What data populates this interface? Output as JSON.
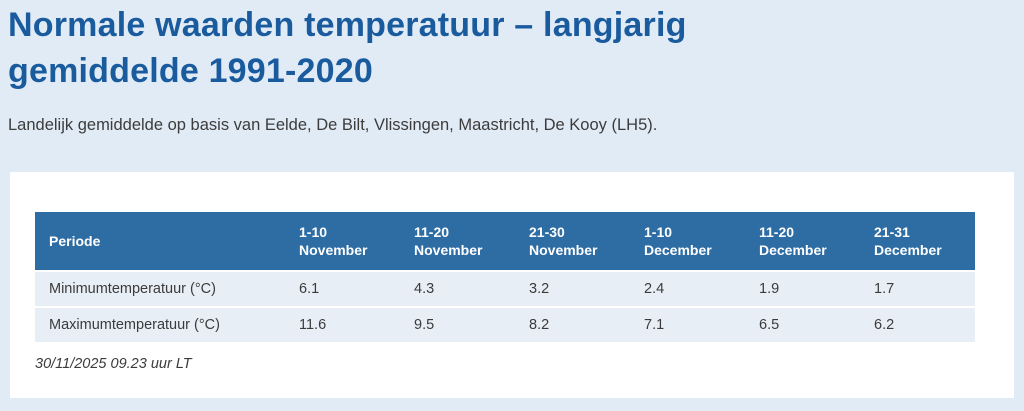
{
  "page": {
    "title_line1": "Normale waarden temperatuur – langjarig",
    "title_line2": "gemiddelde 1991-2020",
    "subtitle": "Landelijk gemiddelde op basis van Eelde, De Bilt, Vlissingen, Maastricht, De Kooy (LH5).",
    "timestamp": "30/11/2025 09.23 uur LT"
  },
  "colors": {
    "heading": "#1a5b9e",
    "page_background": "#e0ebf6",
    "card_background": "#ffffff",
    "table_header_bg": "#2e6da4",
    "table_row_bg": "#e8eef5"
  },
  "table": {
    "header": {
      "periode_label": "Periode",
      "columns": [
        {
          "line1": "1-10",
          "line2": "November"
        },
        {
          "line1": "11-20",
          "line2": "November"
        },
        {
          "line1": "21-30",
          "line2": "November"
        },
        {
          "line1": "1-10",
          "line2": "December"
        },
        {
          "line1": "11-20",
          "line2": "December"
        },
        {
          "line1": "21-31",
          "line2": "December"
        }
      ]
    },
    "rows": [
      {
        "label": "Minimumtemperatuur (°C)",
        "values": [
          "6.1",
          "4.3",
          "3.2",
          "2.4",
          "1.9",
          "1.7"
        ]
      },
      {
        "label": "Maximumtemperatuur (°C)",
        "values": [
          "11.6",
          "9.5",
          "8.2",
          "7.1",
          "6.5",
          "6.2"
        ]
      }
    ]
  }
}
